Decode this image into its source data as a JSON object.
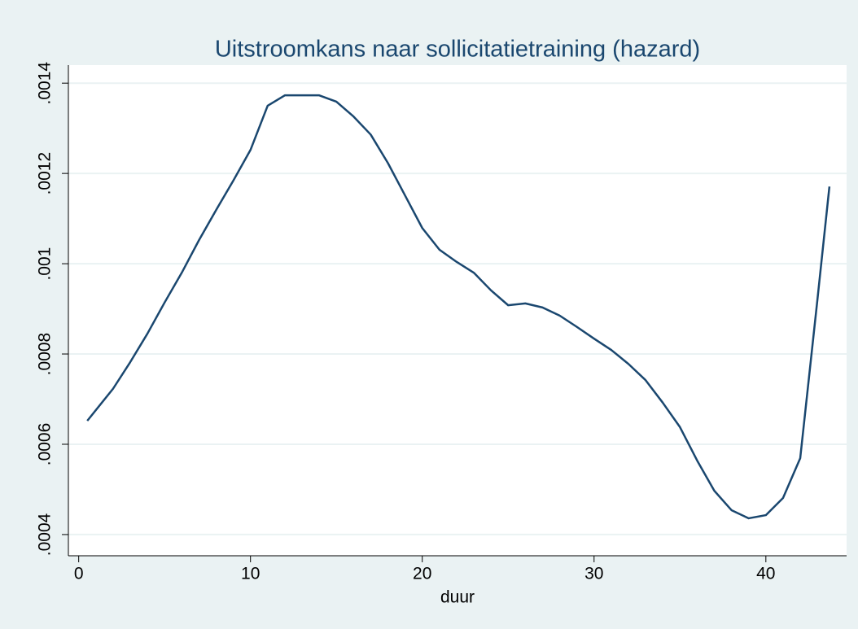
{
  "chart_data": {
    "type": "line",
    "title": "Uitstroomkans naar sollicitatietraining (hazard)",
    "x_label": "duur",
    "x": [
      0.5,
      2,
      3,
      4,
      5,
      6,
      7,
      8,
      9,
      10,
      11,
      12,
      13,
      14,
      15,
      16,
      17,
      18,
      19,
      20,
      21,
      22,
      23,
      24,
      25,
      26,
      27,
      28,
      29,
      30,
      31,
      32,
      33,
      34,
      35,
      36,
      37,
      38,
      39,
      40,
      41,
      42,
      43,
      43.7
    ],
    "series": [
      {
        "color": "#1a476f",
        "values": [
          0.000652,
          0.000723,
          0.000782,
          0.000845,
          0.000914,
          0.00098,
          0.001052,
          0.001119,
          0.001184,
          0.001252,
          0.00135,
          0.001373,
          0.001373,
          0.001373,
          0.001359,
          0.001326,
          0.001286,
          0.001223,
          0.001151,
          0.001079,
          0.001031,
          0.001004,
          0.00098,
          0.000941,
          0.000908,
          0.000912,
          0.000903,
          0.000885,
          0.00086,
          0.000834,
          0.000809,
          0.000778,
          0.000742,
          0.000692,
          0.000638,
          0.000564,
          0.000497,
          0.000454,
          0.000436,
          0.000443,
          0.000481,
          0.000569,
          0.00092,
          0.001171
        ]
      }
    ],
    "xlim": [
      -0.6,
      44.7
    ],
    "xticks": [
      0,
      10,
      20,
      30,
      40
    ],
    "ylim": [
      0.000353,
      0.00144
    ],
    "yticks": [
      {
        "value": 0.0004,
        "label": ".0004"
      },
      {
        "value": 0.0006,
        "label": ".0006"
      },
      {
        "value": 0.0008,
        "label": ".0008"
      },
      {
        "value": 0.001,
        "label": ".001"
      },
      {
        "value": 0.0012,
        "label": ".0012"
      },
      {
        "value": 0.0014,
        "label": ".0014"
      }
    ],
    "grid": true
  }
}
